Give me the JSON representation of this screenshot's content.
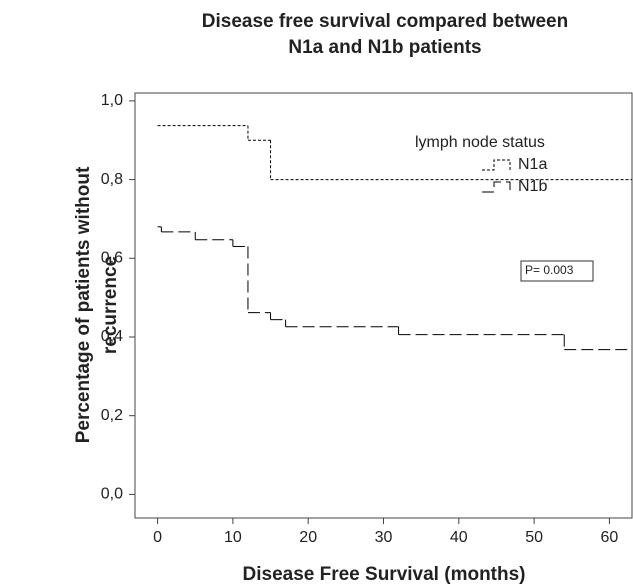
{
  "chart_data": {
    "type": "step",
    "title": [
      "Disease free survival compared between",
      "N1a and N1b patients"
    ],
    "x_label": "Disease Free Survival (months)",
    "y_label": [
      "Percentage of patients without",
      "recurrence"
    ],
    "legend_title": "lymph node status",
    "annotation": "P= 0.003",
    "xlim": [
      -3,
      63
    ],
    "xticks": [
      0,
      10,
      20,
      30,
      40,
      50,
      60
    ],
    "ylim": [
      -0.06,
      1.02
    ],
    "yticks": [
      {
        "value": 0,
        "label": "0,0"
      },
      {
        "value": 0.2,
        "label": "0,2"
      },
      {
        "value": 0.4,
        "label": "0,4"
      },
      {
        "value": 0.6,
        "label": "0,6"
      },
      {
        "value": 0.8,
        "label": "0,8"
      },
      {
        "value": 1,
        "label": "1,0"
      }
    ],
    "series": [
      {
        "name": "N1a",
        "color": "#000000",
        "line_style": "dotted",
        "x": [
          0,
          12,
          15,
          63
        ],
        "values": [
          0.937,
          0.9,
          0.8,
          0.8
        ]
      },
      {
        "name": "N1b",
        "color": "#000000",
        "line_style": "dashed",
        "x": [
          0,
          0.5,
          5,
          10,
          12,
          15,
          17,
          32,
          54,
          63
        ],
        "values": [
          0.68,
          0.667,
          0.647,
          0.63,
          0.462,
          0.444,
          0.426,
          0.406,
          0.368,
          0.368
        ]
      }
    ]
  }
}
